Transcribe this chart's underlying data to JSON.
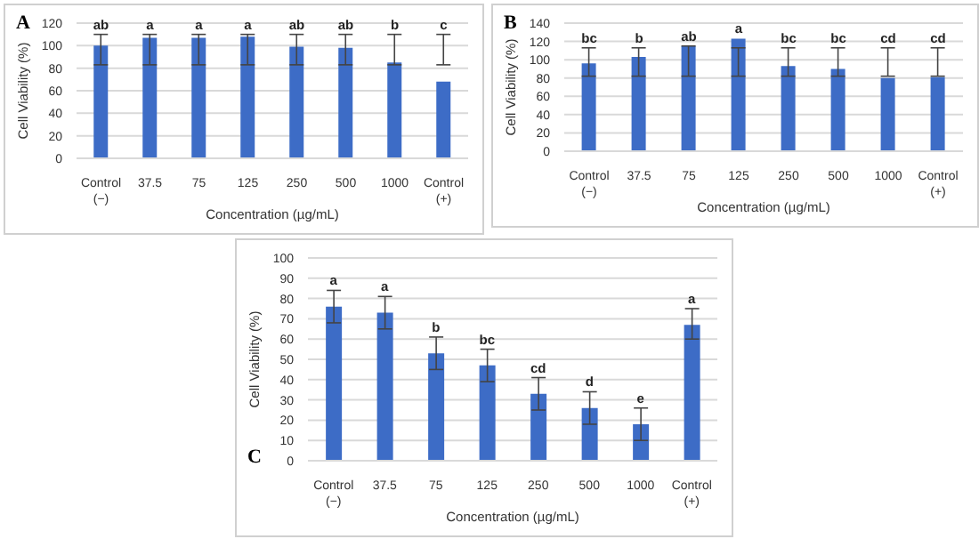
{
  "chart_data": [
    {
      "type": "bar",
      "title": "A",
      "xlabel": "Concentration (µg/mL)",
      "ylabel": "Cell Viability (%)",
      "categories": [
        "Control (−)",
        "37.5",
        "75",
        "125",
        "250",
        "500",
        "1000",
        "Control (+)"
      ],
      "values": [
        100,
        107,
        107,
        108,
        99,
        98,
        85,
        68
      ],
      "color": "#3d6cc6",
      "errors": [
        [
          83,
          110
        ],
        [
          83,
          110
        ],
        [
          83,
          110
        ],
        [
          83,
          110
        ],
        [
          83,
          110
        ],
        [
          83,
          110
        ],
        [
          83,
          110
        ],
        [
          83,
          110
        ]
      ],
      "ylim": [
        0,
        120
      ],
      "yticks": [
        0,
        20,
        40,
        60,
        80,
        100,
        120
      ],
      "grid": "y",
      "annotations": [
        {
          "text": "ab",
          "x": "Control (−)",
          "y": 110
        },
        {
          "text": "a",
          "x": "37.5",
          "y": 110
        },
        {
          "text": "a",
          "x": "75",
          "y": 110
        },
        {
          "text": "a",
          "x": "125",
          "y": 110
        },
        {
          "text": "ab",
          "x": "250",
          "y": 110
        },
        {
          "text": "ab",
          "x": "500",
          "y": 110
        },
        {
          "text": "b",
          "x": "1000",
          "y": 110
        },
        {
          "text": "c",
          "x": "Control (+)",
          "y": 110
        }
      ]
    },
    {
      "type": "bar",
      "title": "B",
      "xlabel": "Concentration (µg/mL)",
      "ylabel": "Cell Viability (%)",
      "categories": [
        "Control (−)",
        "37.5",
        "75",
        "125",
        "250",
        "500",
        "1000",
        "Control (+)"
      ],
      "values": [
        96,
        103,
        115,
        123,
        93,
        90,
        80,
        81
      ],
      "color": "#3d6cc6",
      "errors": [
        [
          82,
          113
        ],
        [
          82,
          113
        ],
        [
          82,
          115
        ],
        [
          82,
          113
        ],
        [
          82,
          113
        ],
        [
          82,
          113
        ],
        [
          82,
          113
        ],
        [
          82,
          113
        ]
      ],
      "ylim": [
        0,
        140
      ],
      "yticks": [
        0,
        20,
        40,
        60,
        80,
        100,
        120,
        140
      ],
      "grid": "y",
      "annotations": [
        {
          "text": "bc",
          "x": "Control (−)",
          "y": 113
        },
        {
          "text": "b",
          "x": "37.5",
          "y": 113
        },
        {
          "text": "ab",
          "x": "75",
          "y": 115
        },
        {
          "text": "a",
          "x": "125",
          "y": 123
        },
        {
          "text": "bc",
          "x": "250",
          "y": 113
        },
        {
          "text": "bc",
          "x": "500",
          "y": 113
        },
        {
          "text": "cd",
          "x": "1000",
          "y": 113
        },
        {
          "text": "cd",
          "x": "Control (+)",
          "y": 113
        }
      ]
    },
    {
      "type": "bar",
      "title": "C",
      "xlabel": "Concentration (µg/mL)",
      "ylabel": "Cell Viability (%)",
      "categories": [
        "Control (−)",
        "37.5",
        "75",
        "125",
        "250",
        "500",
        "1000",
        "Control (+)"
      ],
      "values": [
        76,
        73,
        53,
        47,
        33,
        26,
        18,
        67
      ],
      "color": "#3d6cc6",
      "errors": [
        [
          68,
          84
        ],
        [
          65,
          81
        ],
        [
          45,
          61
        ],
        [
          39,
          55
        ],
        [
          25,
          41
        ],
        [
          18,
          34
        ],
        [
          10,
          26
        ],
        [
          60,
          75
        ]
      ],
      "ylim": [
        0,
        100
      ],
      "yticks": [
        0,
        10,
        20,
        30,
        40,
        50,
        60,
        70,
        80,
        90,
        100
      ],
      "grid": "y",
      "annotations": [
        {
          "text": "a",
          "x": "Control (−)",
          "y": 84
        },
        {
          "text": "a",
          "x": "37.5",
          "y": 81
        },
        {
          "text": "b",
          "x": "75",
          "y": 61
        },
        {
          "text": "bc",
          "x": "125",
          "y": 55
        },
        {
          "text": "cd",
          "x": "250",
          "y": 41
        },
        {
          "text": "d",
          "x": "500",
          "y": 34
        },
        {
          "text": "e",
          "x": "1000",
          "y": 26
        },
        {
          "text": "a",
          "x": "Control (+)",
          "y": 75
        }
      ]
    }
  ]
}
